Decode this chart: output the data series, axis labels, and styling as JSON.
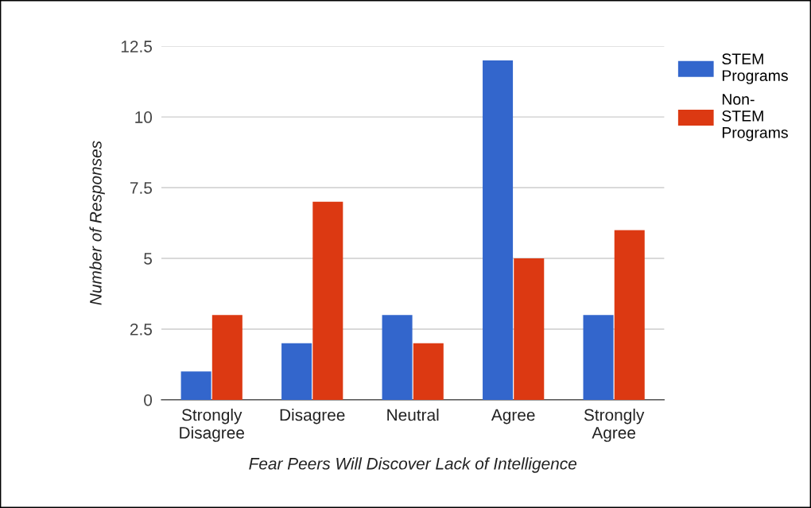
{
  "chart_data": {
    "type": "bar",
    "xlabel": "Fear Peers Will Discover Lack of Intelligence",
    "ylabel": "Number of Responses",
    "categories": [
      "Strongly\nDisagree",
      "Disagree",
      "Neutral",
      "Agree",
      "Strongly\nAgree"
    ],
    "series": [
      {
        "name": "STEM\nPrograms",
        "color": "#3366cc",
        "values": [
          1,
          2,
          3,
          12,
          3
        ]
      },
      {
        "name": "Non-\nSTEM\nPrograms",
        "color": "#dc3912",
        "values": [
          3,
          7,
          2,
          5,
          6
        ]
      }
    ],
    "ylim": [
      0,
      12.5
    ],
    "yticks": [
      0,
      2.5,
      5,
      7.5,
      10,
      12.5
    ],
    "grid": "y",
    "legend": "top right"
  }
}
